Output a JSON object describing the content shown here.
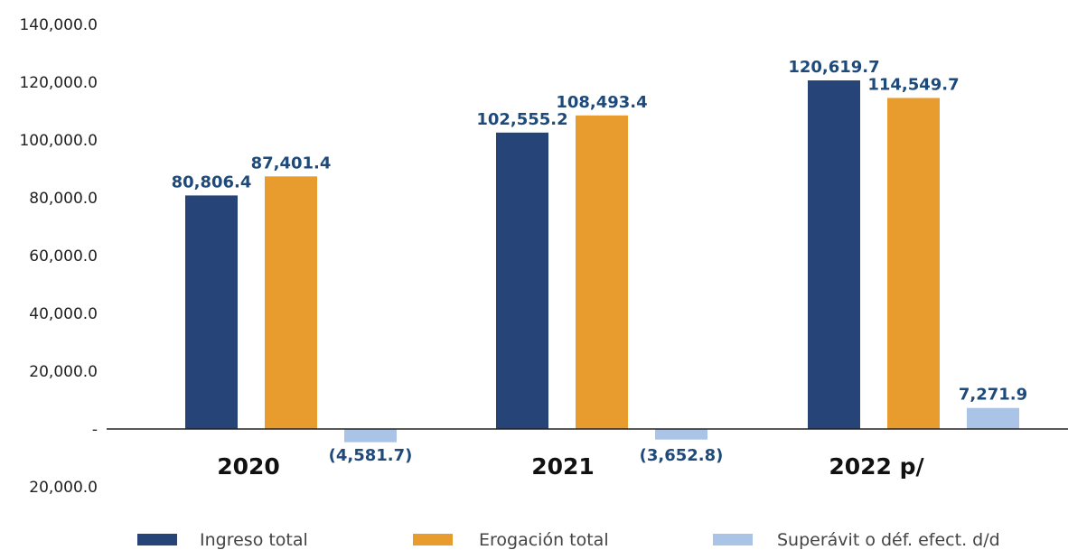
{
  "chart_data": {
    "type": "bar",
    "categories": [
      "2020",
      "2021",
      "2022 p/"
    ],
    "series": [
      {
        "name": "Ingreso total",
        "values": [
          80806.4,
          102555.2,
          120619.7
        ],
        "labels": [
          "80,806.4",
          "102,555.2",
          "120,619.7"
        ],
        "color": "#264478"
      },
      {
        "name": "Erogación total",
        "values": [
          87401.4,
          108493.4,
          114549.7
        ],
        "labels": [
          "87,401.4",
          "108,493.4",
          "114,549.7"
        ],
        "color": "#e99c2e"
      },
      {
        "name": "Superávit o déf. efect. d/d",
        "values": [
          -4581.7,
          -3652.8,
          7271.9
        ],
        "labels": [
          "(4,581.7)",
          "(3,652.8)",
          "7,271.9"
        ],
        "color": "#a9c4e6"
      }
    ],
    "yticks": [
      140000,
      120000,
      100000,
      80000,
      60000,
      40000,
      20000,
      0,
      -20000
    ],
    "ytick_labels": [
      "140,000.0",
      "120,000.0",
      "100,000.0",
      "80,000.0",
      "60,000.0",
      "40,000.0",
      "20,000.0",
      "-",
      "20,000.0"
    ],
    "ylim": [
      -20000,
      140000
    ],
    "xlabel": "",
    "ylabel": "",
    "grid": false,
    "legend_position": "bottom"
  }
}
